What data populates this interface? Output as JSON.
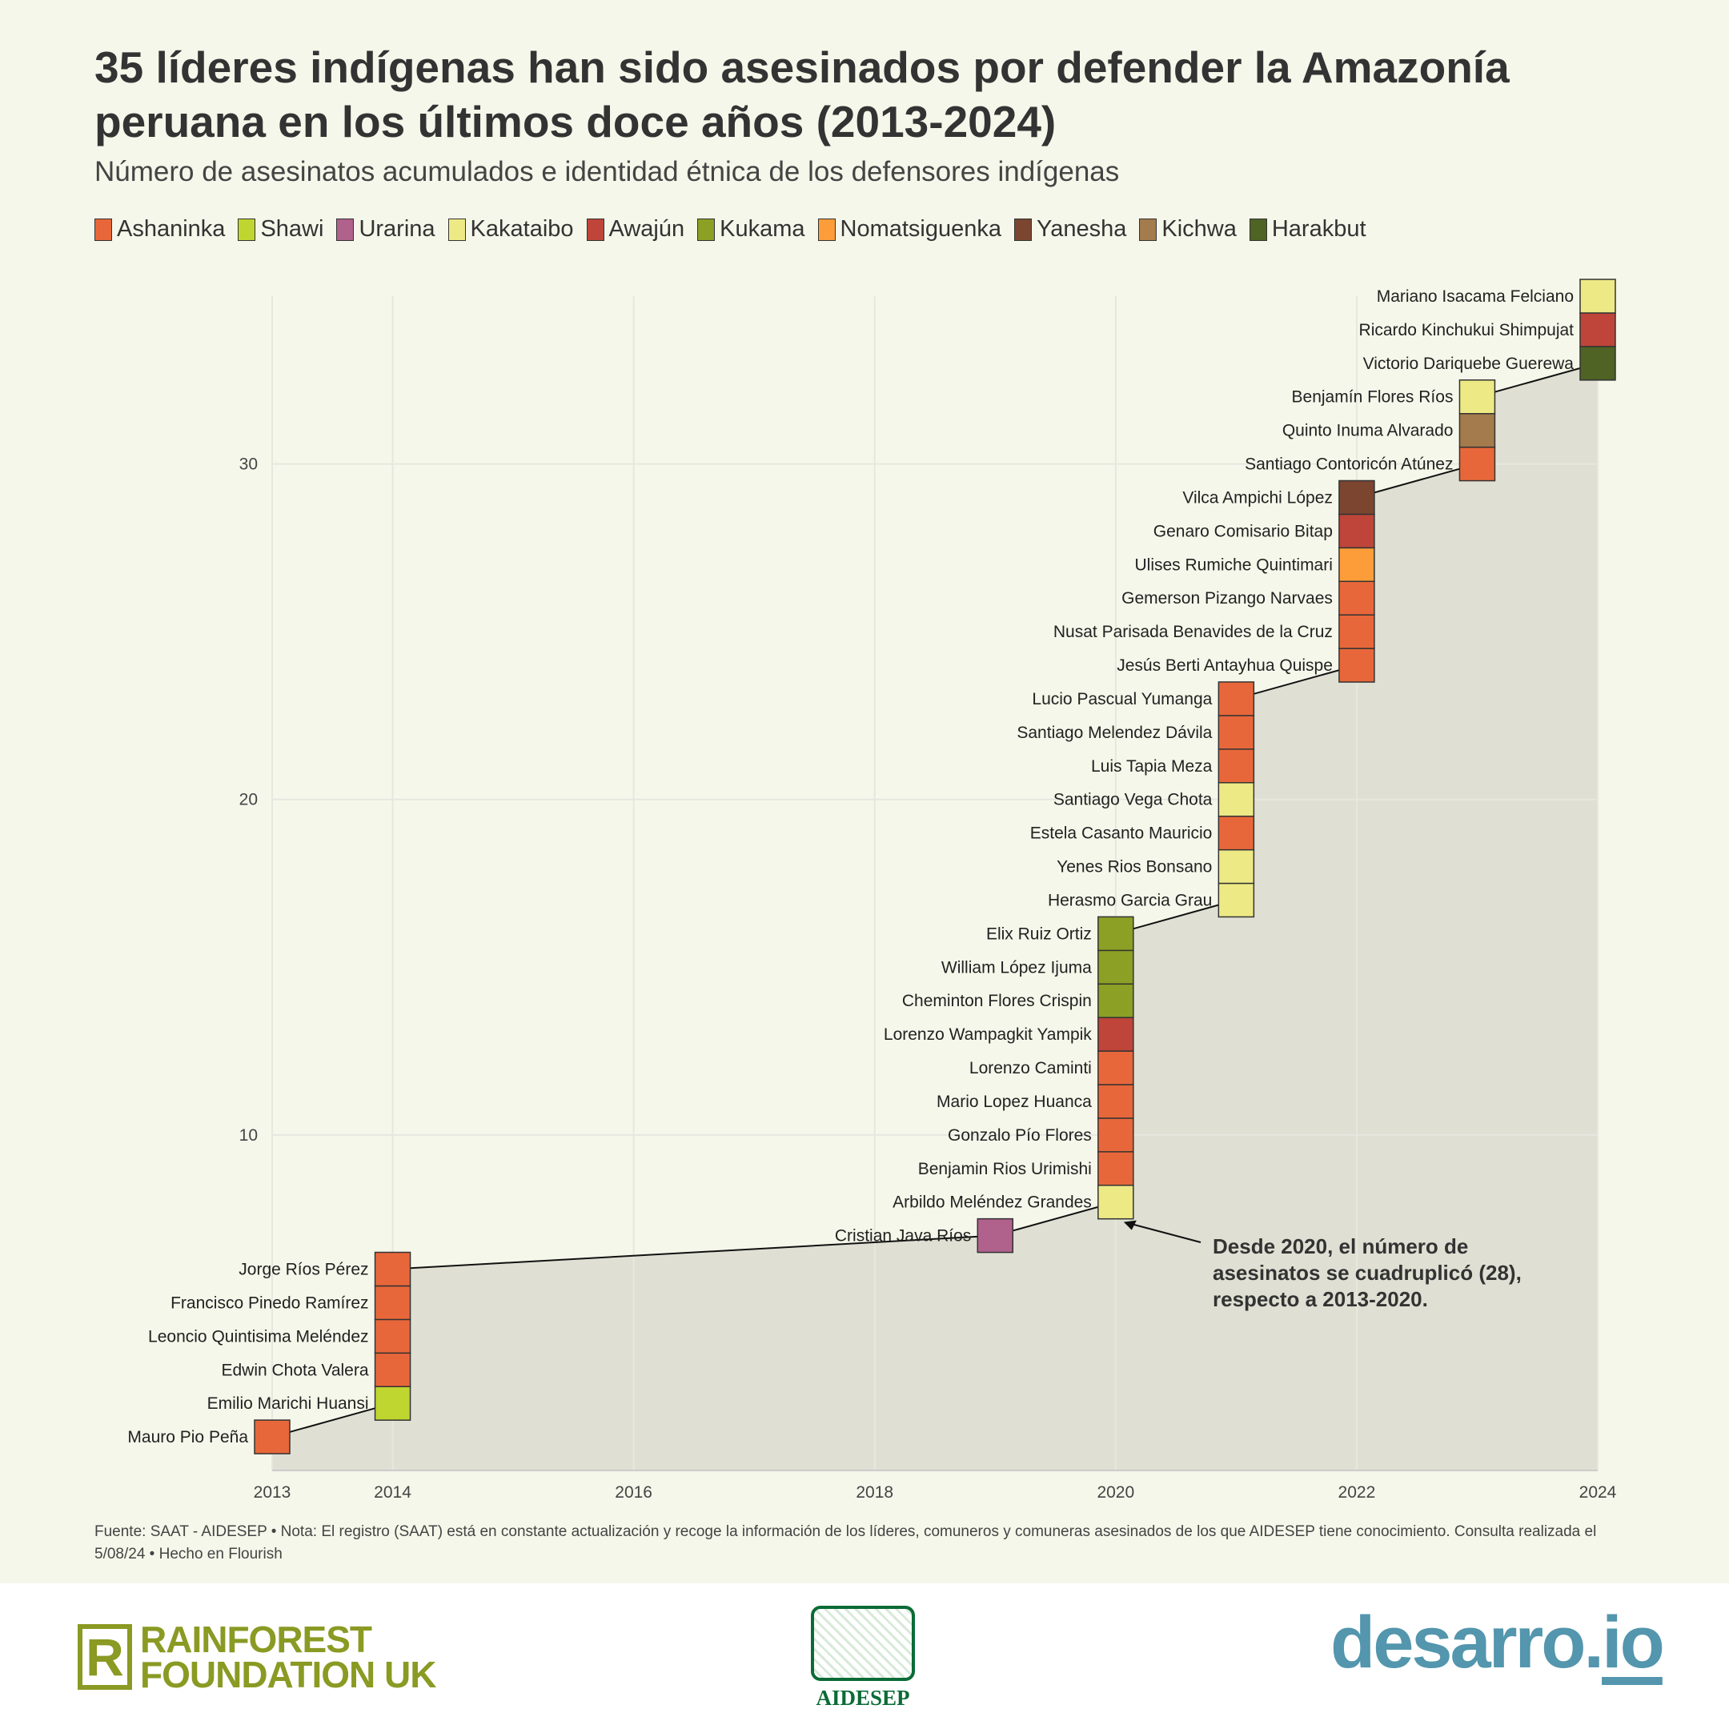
{
  "header": {
    "title": "35 líderes indígenas han sido asesinados por defender la Amazonía peruana en los últimos doce años (2013-2024)",
    "subtitle": "Número de asesinatos acumulados e identidad étnica de los defensores indígenas"
  },
  "legend": [
    {
      "label": "Ashaninka",
      "color": "#e8673a"
    },
    {
      "label": "Shawi",
      "color": "#bfd630"
    },
    {
      "label": "Urarina",
      "color": "#b0628c"
    },
    {
      "label": "Kakataibo",
      "color": "#ede985"
    },
    {
      "label": "Awajún",
      "color": "#bf453a"
    },
    {
      "label": "Kukama",
      "color": "#8ba024"
    },
    {
      "label": "Nomatsiguenka",
      "color": "#fc9d3a"
    },
    {
      "label": "Yanesha",
      "color": "#7b4530"
    },
    {
      "label": "Kichwa",
      "color": "#a37b4c"
    },
    {
      "label": "Harakbut",
      "color": "#4e6324"
    }
  ],
  "chart_data": {
    "type": "scatter",
    "title": "35 líderes indígenas han sido asesinados por defender la Amazonía peruana en los últimos doce años (2013-2024)",
    "xlim": [
      2013,
      2024
    ],
    "ylim": [
      0,
      35
    ],
    "x_ticks": [
      "2013",
      "2014",
      "2016",
      "2018",
      "2020",
      "2022",
      "2024"
    ],
    "y_ticks": [
      "10",
      "20",
      "30"
    ],
    "grid": true,
    "area_color": "#dfe0d3",
    "points": [
      {
        "year": 2013,
        "n": 1,
        "name": "Mauro Pio Peña",
        "group": "Ashaninka"
      },
      {
        "year": 2014,
        "n": 2,
        "name": "Emilio Marichi Huansi",
        "group": "Shawi"
      },
      {
        "year": 2014,
        "n": 3,
        "name": "Edwin Chota Valera",
        "group": "Ashaninka"
      },
      {
        "year": 2014,
        "n": 4,
        "name": "Leoncio Quintisima Meléndez",
        "group": "Ashaninka"
      },
      {
        "year": 2014,
        "n": 5,
        "name": "Francisco Pinedo Ramírez",
        "group": "Ashaninka"
      },
      {
        "year": 2014,
        "n": 6,
        "name": "Jorge Ríos Pérez",
        "group": "Ashaninka"
      },
      {
        "year": 2019,
        "n": 7,
        "name": "Cristian Java Ríos",
        "group": "Urarina"
      },
      {
        "year": 2020,
        "n": 8,
        "name": "Arbildo Meléndez Grandes",
        "group": "Kakataibo"
      },
      {
        "year": 2020,
        "n": 9,
        "name": "Benjamin Rios Urimishi",
        "group": "Ashaninka"
      },
      {
        "year": 2020,
        "n": 10,
        "name": "Gonzalo Pío Flores",
        "group": "Ashaninka"
      },
      {
        "year": 2020,
        "n": 11,
        "name": "Mario Lopez Huanca",
        "group": "Ashaninka"
      },
      {
        "year": 2020,
        "n": 12,
        "name": "Lorenzo Caminti",
        "group": "Ashaninka"
      },
      {
        "year": 2020,
        "n": 13,
        "name": "Lorenzo Wampagkit Yampik",
        "group": "Awajún"
      },
      {
        "year": 2020,
        "n": 14,
        "name": "Cheminton Flores Crispin",
        "group": "Kukama"
      },
      {
        "year": 2020,
        "n": 15,
        "name": "William López Ijuma",
        "group": "Kukama"
      },
      {
        "year": 2020,
        "n": 16,
        "name": "Elix Ruiz Ortiz",
        "group": "Kukama"
      },
      {
        "year": 2021,
        "n": 17,
        "name": "Herasmo Garcia Grau",
        "group": "Kakataibo"
      },
      {
        "year": 2021,
        "n": 18,
        "name": "Yenes Rios Bonsano",
        "group": "Kakataibo"
      },
      {
        "year": 2021,
        "n": 19,
        "name": "Estela Casanto Mauricio",
        "group": "Ashaninka"
      },
      {
        "year": 2021,
        "n": 20,
        "name": "Santiago Vega Chota",
        "group": "Kakataibo"
      },
      {
        "year": 2021,
        "n": 21,
        "name": "Luis Tapia Meza",
        "group": "Ashaninka"
      },
      {
        "year": 2021,
        "n": 22,
        "name": "Santiago Melendez Dávila",
        "group": "Ashaninka"
      },
      {
        "year": 2021,
        "n": 23,
        "name": "Lucio Pascual Yumanga",
        "group": "Ashaninka"
      },
      {
        "year": 2022,
        "n": 24,
        "name": "Jesús Berti Antayhua Quispe",
        "group": "Ashaninka"
      },
      {
        "year": 2022,
        "n": 25,
        "name": "Nusat Parisada Benavides de la Cruz",
        "group": "Ashaninka"
      },
      {
        "year": 2022,
        "n": 26,
        "name": "Gemerson Pizango Narvaes",
        "group": "Ashaninka"
      },
      {
        "year": 2022,
        "n": 27,
        "name": "Ulises Rumiche Quintimari",
        "group": "Nomatsiguenka"
      },
      {
        "year": 2022,
        "n": 28,
        "name": "Genaro Comisario Bitap",
        "group": "Awajún"
      },
      {
        "year": 2022,
        "n": 29,
        "name": "Vilca Ampichi López",
        "group": "Yanesha"
      },
      {
        "year": 2023,
        "n": 30,
        "name": "Santiago Contoricón Atúnez",
        "group": "Ashaninka"
      },
      {
        "year": 2023,
        "n": 31,
        "name": "Quinto Inuma Alvarado",
        "group": "Kichwa"
      },
      {
        "year": 2023,
        "n": 32,
        "name": "Benjamín Flores Ríos",
        "group": "Kakataibo"
      },
      {
        "year": 2024,
        "n": 33,
        "name": "Victorio Dariquebe Guerewa",
        "group": "Harakbut"
      },
      {
        "year": 2024,
        "n": 34,
        "name": "Ricardo Kinchukui Shimpujat",
        "group": "Awajún"
      },
      {
        "year": 2024,
        "n": 35,
        "name": "Mariano Isacama Felciano",
        "group": "Kakataibo"
      }
    ],
    "annotation": {
      "lines": [
        "Desde 2020, el número de",
        "asesinatos se cuadruplicó (28),",
        "respecto a 2013-2020."
      ],
      "points_to": {
        "year": 2020,
        "n": 7.5
      }
    }
  },
  "footnote": "Fuente: SAAT - AIDESEP • Nota: El registro (SAAT) está en constante actualización y recoge la información de los líderes, comuneros y comuneras asesinados de los que AIDESEP tiene conocimiento. Consulta realizada el 5/08/24 • Hecho en Flourish",
  "logos": {
    "rainforest_line1": "RAINFOREST",
    "rainforest_line2": "FOUNDATION UK",
    "aidesep": "AIDESEP",
    "desarro_main": "desarro.",
    "desarro_io": "io"
  }
}
